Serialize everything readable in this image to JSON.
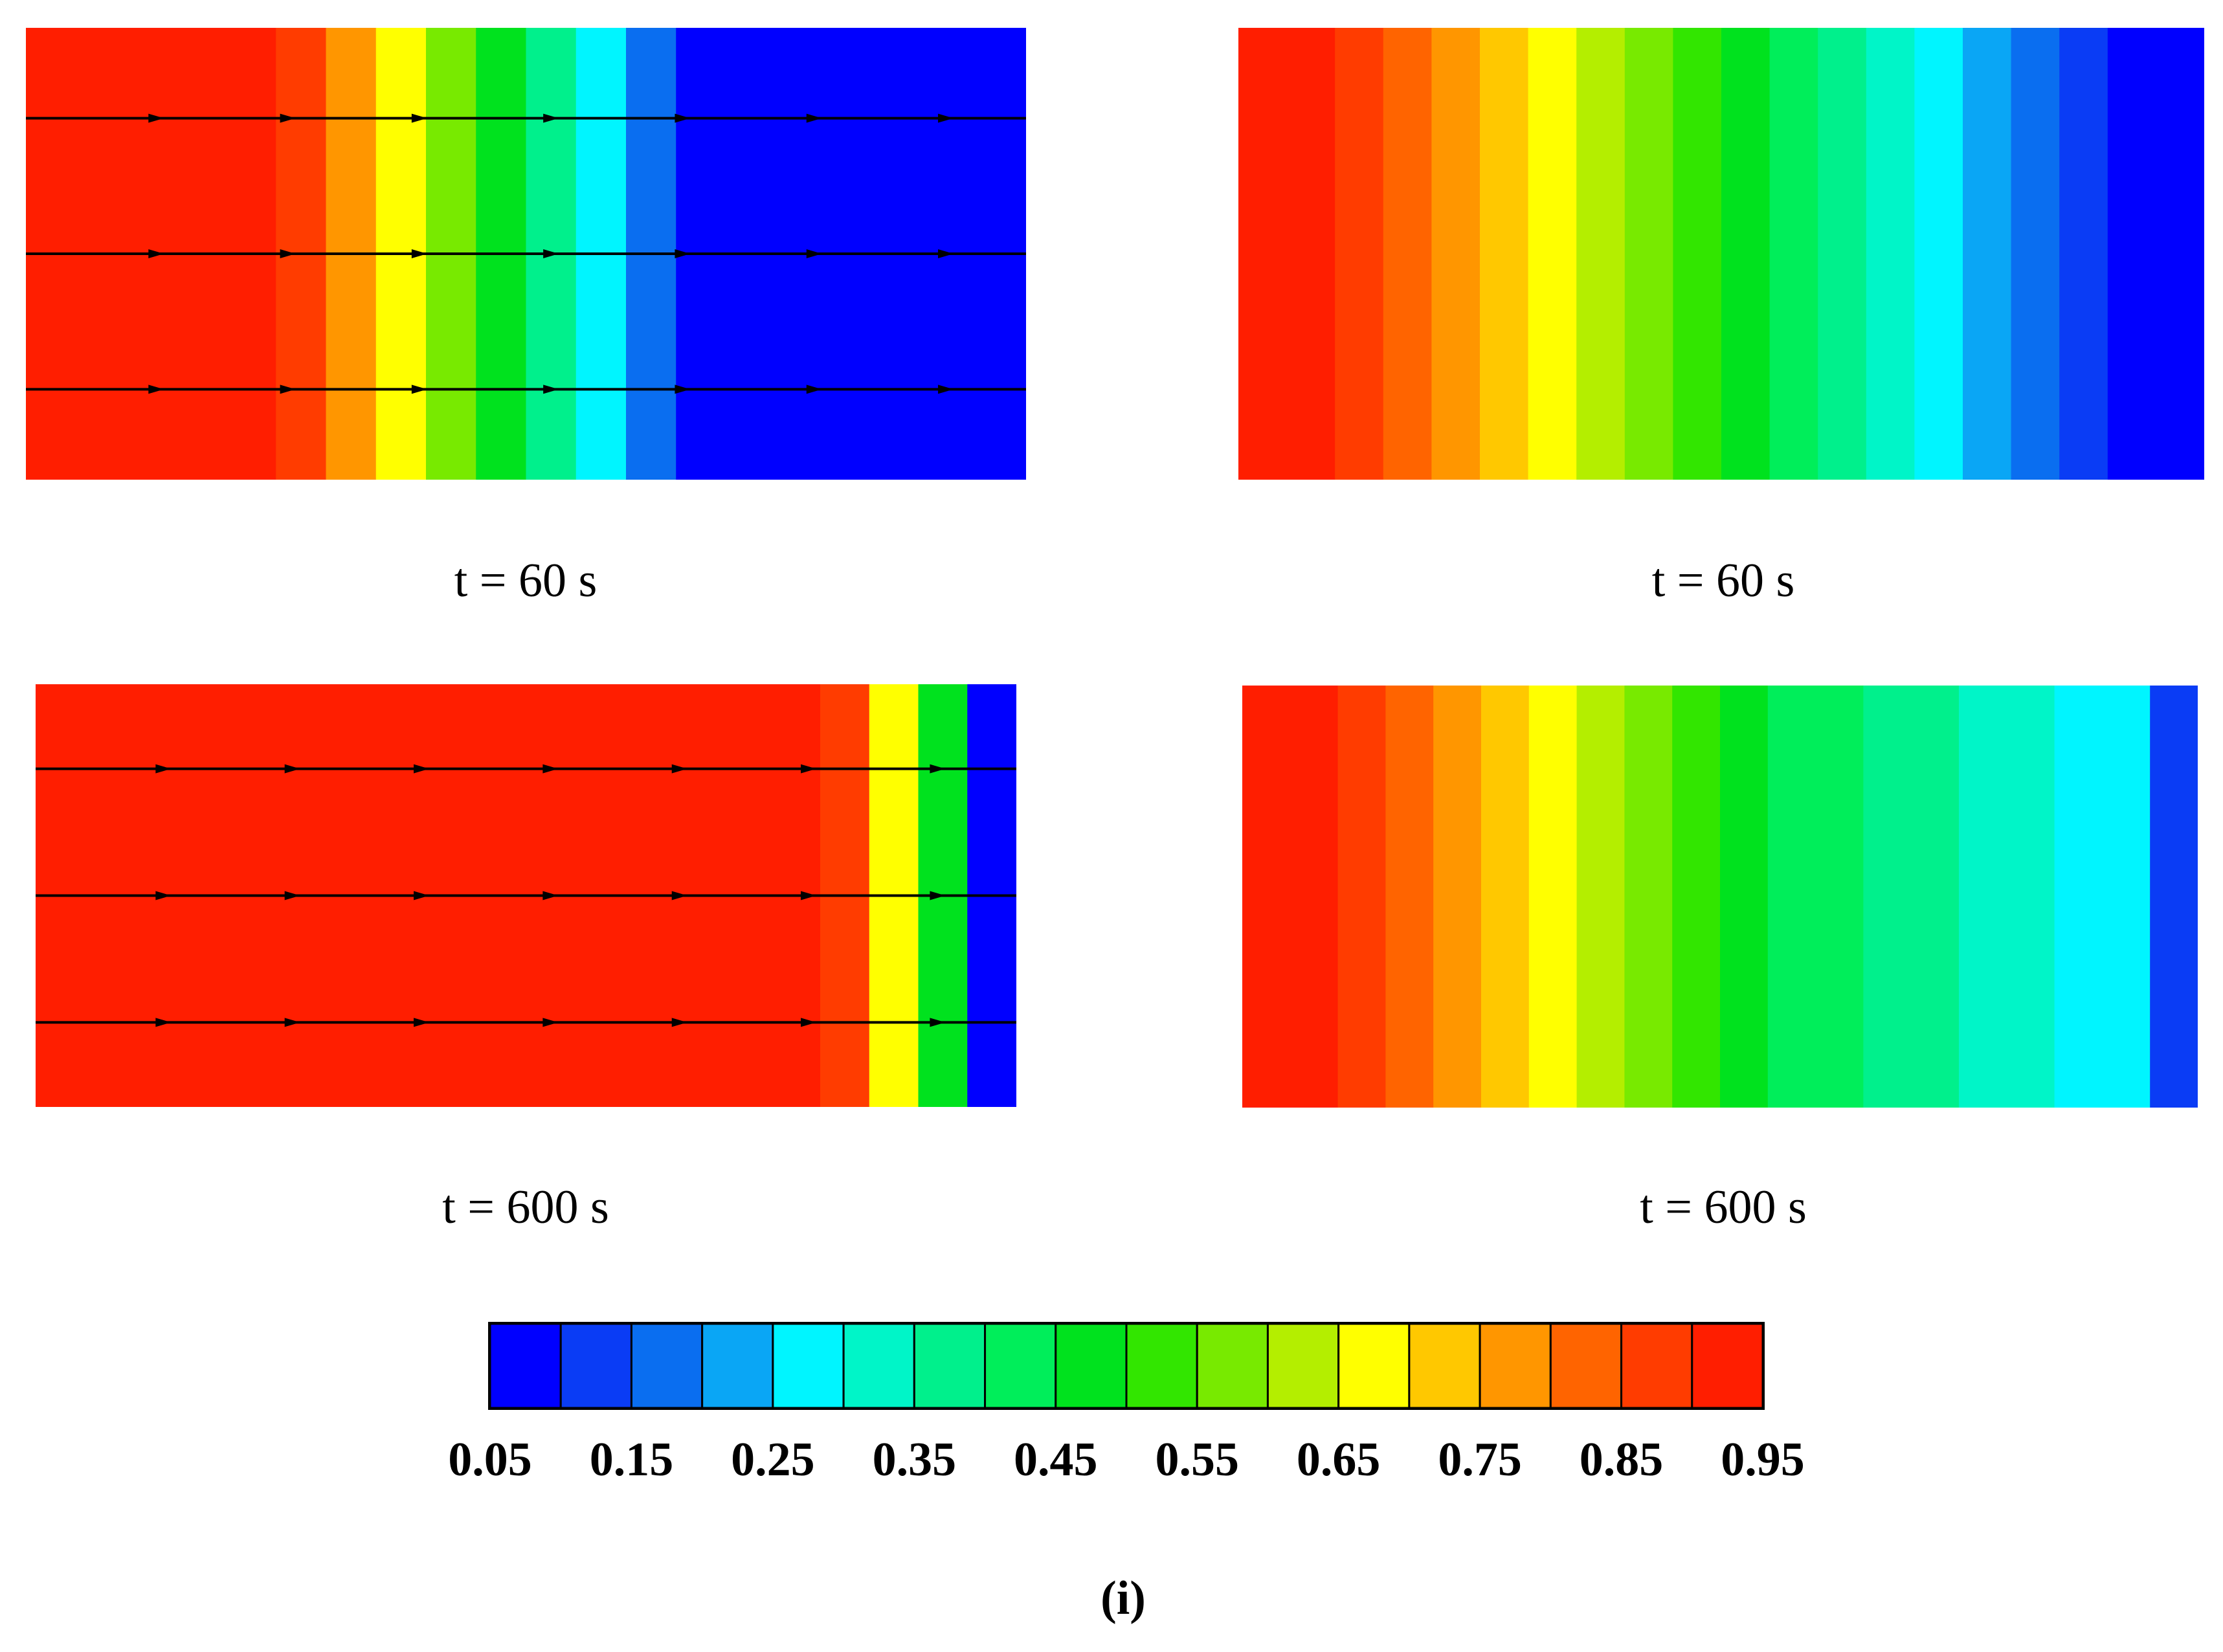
{
  "chart_data": {
    "type": "heatmap",
    "panels": [
      {
        "id": "p1",
        "caption": "t = 60 s",
        "time_s": 60,
        "streamlines": true,
        "bands": [
          0.95,
          0.95,
          0.95,
          0.95,
          0.95,
          0.85,
          0.75,
          0.65,
          0.55,
          0.45,
          0.35,
          0.25,
          0.15,
          0.05,
          0.05,
          0.05,
          0.05,
          0.05,
          0.05,
          0.05
        ]
      },
      {
        "id": "p2",
        "caption": "t = 60 s",
        "time_s": 60,
        "streamlines": false,
        "bands": [
          0.95,
          0.9,
          0.85,
          0.8,
          0.75,
          0.7,
          0.65,
          0.6,
          0.55,
          0.5,
          0.45,
          0.4,
          0.35,
          0.3,
          0.25,
          0.2,
          0.15,
          0.1,
          0.05,
          0.05
        ]
      },
      {
        "id": "p3",
        "caption": "t = 600 s",
        "time_s": 600,
        "streamlines": true,
        "bands": [
          0.95,
          0.95,
          0.95,
          0.95,
          0.95,
          0.95,
          0.95,
          0.95,
          0.95,
          0.95,
          0.95,
          0.95,
          0.95,
          0.95,
          0.95,
          0.95,
          0.85,
          0.65,
          0.45,
          0.05
        ]
      },
      {
        "id": "p4",
        "caption": "t = 600 s",
        "time_s": 600,
        "streamlines": false,
        "bands": [
          0.95,
          0.9,
          0.85,
          0.8,
          0.75,
          0.7,
          0.65,
          0.6,
          0.55,
          0.5,
          0.45,
          0.42,
          0.4,
          0.38,
          0.35,
          0.33,
          0.3,
          0.28,
          0.25,
          0.1
        ]
      }
    ],
    "colorbar": {
      "levels": [
        0.05,
        0.1,
        0.15,
        0.2,
        0.25,
        0.3,
        0.35,
        0.4,
        0.45,
        0.5,
        0.55,
        0.6,
        0.65,
        0.7,
        0.75,
        0.8,
        0.85,
        0.9
      ],
      "colors": [
        "#0000ff",
        "#0a3cf5",
        "#0a6ef0",
        "#0aa6f5",
        "#00f5ff",
        "#00f5c8",
        "#00f08c",
        "#00ee5a",
        "#00e21e",
        "#32e600",
        "#78ea00",
        "#b4ee00",
        "#ffff00",
        "#ffc800",
        "#ff9600",
        "#ff6400",
        "#ff3c00",
        "#ff1e00"
      ],
      "tick_labels": [
        "0.05",
        "0.15",
        "0.25",
        "0.35",
        "0.45",
        "0.55",
        "0.65",
        "0.75",
        "0.85",
        "0.95"
      ]
    },
    "sublabel": "(i)"
  }
}
